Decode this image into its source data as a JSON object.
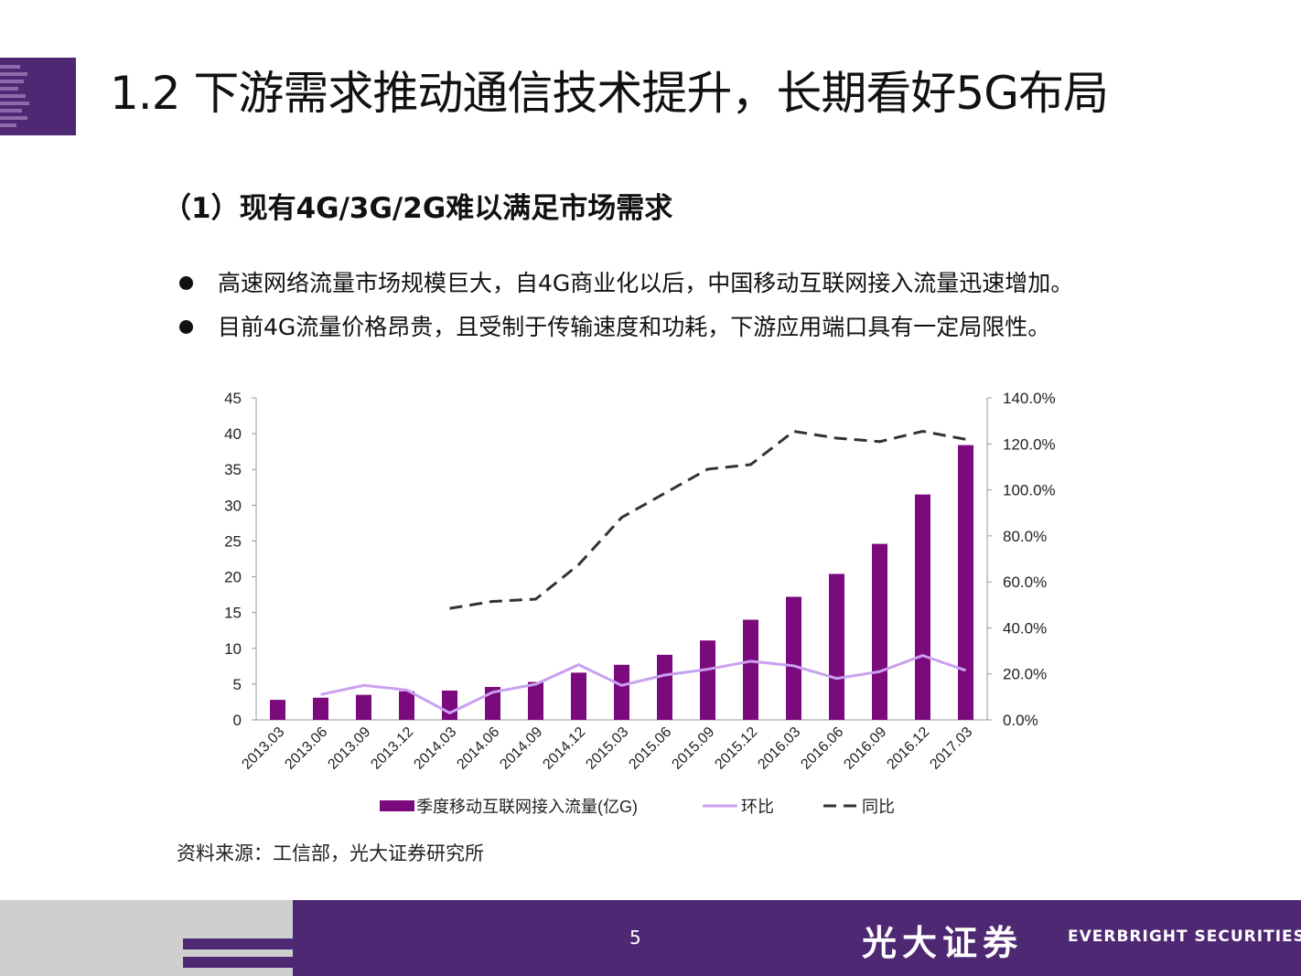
{
  "slide": {
    "title": "1.2 下游需求推动通信技术提升，长期看好5G布局",
    "subtitle": "（1）现有4G/3G/2G难以满足市场需求",
    "bullets": [
      "高速网络流量市场规模巨大，自4G商业化以后，中国移动互联网接入流量迅速增加。",
      "目前4G流量价格昂贵，且受制于传输速度和功耗，下游应用端口具有一定局限性。"
    ],
    "source": "资料来源：工信部，光大证券研究所",
    "page_number": "5",
    "brand_cn": "光大证券",
    "brand_en": "EVERBRIGHT SECURITIES"
  },
  "colors": {
    "purple": "#4f2874",
    "bar": "#7b0a7d",
    "hb_line": "#c9a0ef",
    "tb_line": "#333333"
  },
  "chart_data": {
    "type": "bar",
    "categories": [
      "2013.03",
      "2013.06",
      "2013.09",
      "2013.12",
      "2014.03",
      "2014.06",
      "2014.09",
      "2014.12",
      "2015.03",
      "2015.06",
      "2015.09",
      "2015.12",
      "2016.03",
      "2016.06",
      "2016.09",
      "2016.12",
      "2017.03"
    ],
    "series": [
      {
        "name": "季度移动互联网接入流量(亿G)",
        "type": "bar",
        "axis": "left",
        "values": [
          2.8,
          3.1,
          3.5,
          4.0,
          4.1,
          4.6,
          5.3,
          6.6,
          7.7,
          9.1,
          11.1,
          14.0,
          17.2,
          20.4,
          24.6,
          31.5,
          38.4
        ]
      },
      {
        "name": "环比",
        "type": "line",
        "axis": "right",
        "style": "solid",
        "values": [
          null,
          11.0,
          15.0,
          13.0,
          3.0,
          12.0,
          15.5,
          24.0,
          15.0,
          19.5,
          22.0,
          25.5,
          23.5,
          18.0,
          21.0,
          28.0,
          21.5
        ]
      },
      {
        "name": "同比",
        "type": "line",
        "axis": "right",
        "style": "dashed",
        "values": [
          null,
          null,
          null,
          null,
          48.5,
          51.5,
          52.5,
          67.5,
          88.0,
          98.5,
          109.0,
          111.0,
          125.5,
          122.5,
          121.0,
          125.5,
          122.0
        ]
      }
    ],
    "y_left": {
      "min": 0,
      "max": 45,
      "ticks": [
        "0",
        "5",
        "10",
        "15",
        "20",
        "25",
        "30",
        "35",
        "40",
        "45"
      ]
    },
    "y_right": {
      "min": 0,
      "max": 140,
      "ticks": [
        "0.0%",
        "20.0%",
        "40.0%",
        "60.0%",
        "80.0%",
        "100.0%",
        "120.0%",
        "140.0%"
      ]
    },
    "legend": {
      "position": "bottom"
    }
  }
}
